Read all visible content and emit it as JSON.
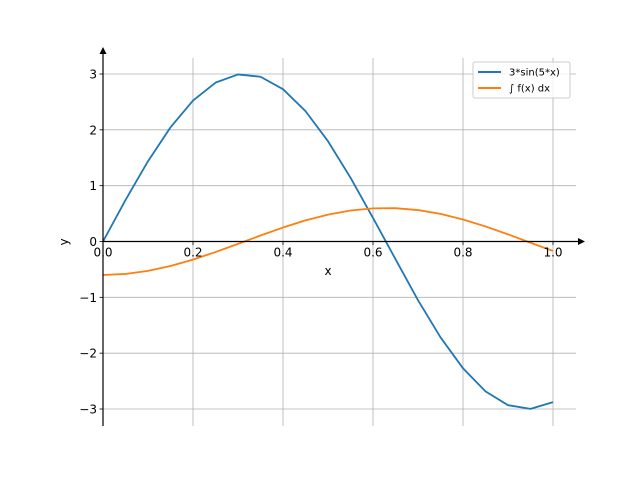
{
  "chart_data": {
    "type": "line",
    "xlabel": "x",
    "ylabel": "y",
    "xlim": [
      0.0,
      1.0
    ],
    "ylim": [
      -3.3,
      3.3
    ],
    "grid": true,
    "legend_position": "top-right",
    "x_ticks": [
      {
        "value": 0.0,
        "label": "0.0"
      },
      {
        "value": 0.2,
        "label": "0.2"
      },
      {
        "value": 0.4,
        "label": "0.4"
      },
      {
        "value": 0.6,
        "label": "0.6"
      },
      {
        "value": 0.8,
        "label": "0.8"
      },
      {
        "value": 1.0,
        "label": "1.0"
      }
    ],
    "y_ticks": [
      {
        "value": -3,
        "label": "−3"
      },
      {
        "value": -2,
        "label": "−2"
      },
      {
        "value": -1,
        "label": "−1"
      },
      {
        "value": 0,
        "label": "0"
      },
      {
        "value": 1,
        "label": "1"
      },
      {
        "value": 2,
        "label": "2"
      },
      {
        "value": 3,
        "label": "3"
      }
    ],
    "x": [
      0.0,
      0.05,
      0.1,
      0.15,
      0.2,
      0.25,
      0.3,
      0.35,
      0.4,
      0.45,
      0.5,
      0.55,
      0.6,
      0.65,
      0.7,
      0.75,
      0.8,
      0.85,
      0.9,
      0.95,
      1.0
    ],
    "series": [
      {
        "name": "3*sin(5*x)",
        "color": "#1f77b4",
        "values": [
          0.0,
          0.742,
          1.438,
          2.045,
          2.524,
          2.845,
          2.992,
          2.951,
          2.728,
          2.335,
          1.796,
          1.143,
          0.423,
          -0.317,
          -1.051,
          -1.716,
          -2.271,
          -2.685,
          -2.932,
          -2.997,
          -2.877
        ]
      },
      {
        "name": "∫ f(x) dx",
        "color": "#ff7f0e",
        "values": [
          -0.6,
          -0.581,
          -0.526,
          -0.438,
          -0.324,
          -0.189,
          -0.043,
          0.107,
          0.25,
          0.378,
          0.481,
          0.555,
          0.594,
          0.597,
          0.563,
          0.494,
          0.394,
          0.27,
          0.128,
          -0.022,
          -0.169
        ]
      }
    ]
  },
  "colors": {
    "grid": "#b0b0b0",
    "axis": "#000000"
  }
}
